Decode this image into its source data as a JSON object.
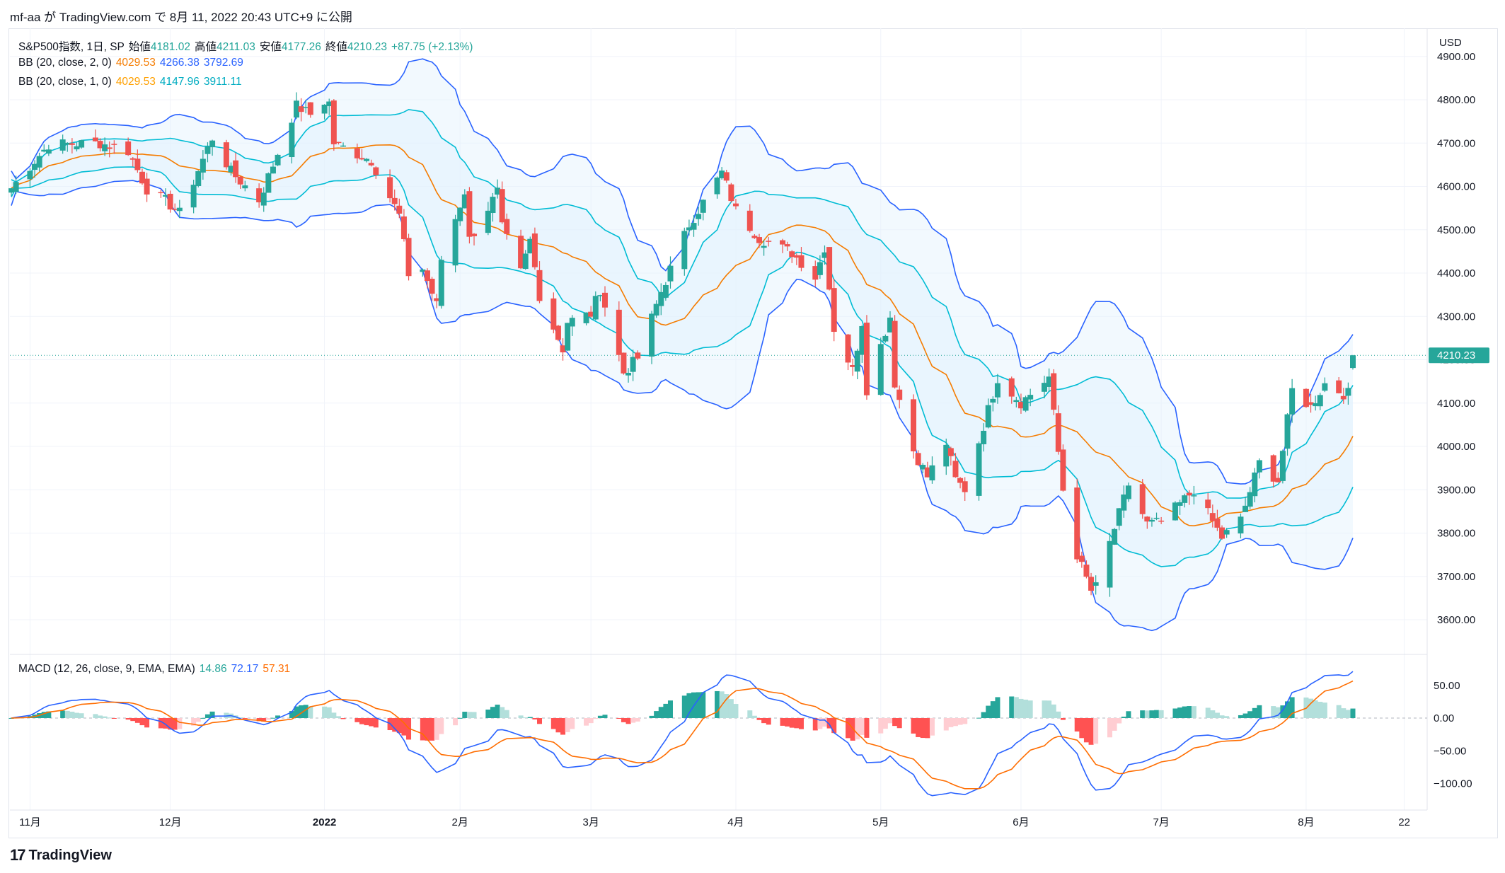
{
  "header": {
    "text": "mf-aa が TradingView.com で 8月 11, 2022 20:43 UTC+9 に公開"
  },
  "legend": {
    "symbol": "S&P500指数, 1日, SP",
    "open_label": "始値",
    "open": "4181.02",
    "high_label": "高値",
    "high": "4211.03",
    "low_label": "安値",
    "low": "4177.26",
    "close_label": "終値",
    "close": "4210.23",
    "change": "+87.75 (+2.13%)",
    "bb2_title": "BB (20, close, 2, 0)",
    "bb2_basis": "4029.53",
    "bb2_upper": "4266.38",
    "bb2_lower": "3792.69",
    "bb1_title": "BB (20, close, 1, 0)",
    "bb1_basis": "4029.53",
    "bb1_upper": "4147.96",
    "bb1_lower": "3911.11",
    "macd_title": "MACD (12, 26, close, 9, EMA, EMA)",
    "macd_hist": "14.86",
    "macd_line": "72.17",
    "macd_signal": "57.31"
  },
  "currency": "USD",
  "footer": {
    "brand": "TradingView",
    "logo_mark": "17"
  },
  "colors": {
    "up": "#26a69a",
    "down": "#ef5350",
    "bb_basis": "#f57c00",
    "bb2": "#2962ff",
    "bb1": "#00bcd4",
    "fill": "#e3f2fd",
    "macd": "#2962ff",
    "signal": "#ff6d00",
    "hist_up": "#26a69a",
    "hist_up_weak": "#b2dfdb",
    "hist_down": "#ff5252",
    "hist_down_weak": "#ffcdd2"
  },
  "chart_data": {
    "type": "candlestick",
    "y_axis": {
      "ticks": [
        "4900.00",
        "4800.00",
        "4700.00",
        "4600.00",
        "4500.00",
        "4400.00",
        "4300.00",
        "4200.00",
        "4100.00",
        "4000.00",
        "3900.00",
        "3800.00",
        "3700.00",
        "3600.00"
      ],
      "range": [
        3540,
        4930
      ]
    },
    "macd_axis": {
      "ticks": [
        "50.00",
        "0.00",
        "−50.00",
        "−100.00"
      ],
      "range": [
        -125,
        80
      ]
    },
    "x_axis": {
      "ticks": [
        "11月",
        "12月",
        "2022",
        "2月",
        "3月",
        "4月",
        "5月",
        "6月",
        "7月",
        "8月",
        "22"
      ]
    },
    "last_price": 4210.23,
    "close_path": [
      [
        "2021-10-28",
        4596
      ],
      [
        "2021-11-05",
        4697
      ],
      [
        "2021-11-16",
        4700
      ],
      [
        "2021-11-22",
        4682
      ],
      [
        "2021-11-26",
        4594
      ],
      [
        "2021-11-30",
        4567
      ],
      [
        "2021-12-03",
        4538
      ],
      [
        "2021-12-10",
        4712
      ],
      [
        "2021-12-14",
        4634
      ],
      [
        "2021-12-20",
        4568
      ],
      [
        "2021-12-28",
        4786
      ],
      [
        "2021-12-31",
        4766
      ],
      [
        "2022-01-03",
        4796
      ],
      [
        "2022-01-04",
        4793
      ],
      [
        "2022-01-05",
        4700
      ],
      [
        "2022-01-13",
        4660
      ],
      [
        "2022-01-19",
        4533
      ],
      [
        "2022-01-21",
        4398
      ],
      [
        "2022-01-24",
        4410
      ],
      [
        "2022-01-27",
        4326
      ],
      [
        "2022-01-28",
        4432
      ],
      [
        "2022-02-02",
        4589
      ],
      [
        "2022-02-03",
        4477
      ],
      [
        "2022-02-09",
        4587
      ],
      [
        "2022-02-10",
        4504
      ],
      [
        "2022-02-14",
        4401
      ],
      [
        "2022-02-16",
        4475
      ],
      [
        "2022-02-18",
        4349
      ],
      [
        "2022-02-23",
        4225
      ],
      [
        "2022-02-24",
        4288
      ],
      [
        "2022-03-01",
        4306
      ],
      [
        "2022-03-03",
        4363
      ],
      [
        "2022-03-08",
        4170
      ],
      [
        "2022-03-11",
        4204
      ],
      [
        "2022-03-16",
        4357
      ],
      [
        "2022-03-22",
        4512
      ],
      [
        "2022-03-29",
        4632
      ],
      [
        "2022-04-01",
        4545
      ],
      [
        "2022-04-06",
        4481
      ],
      [
        "2022-04-13",
        4447
      ],
      [
        "2022-04-18",
        4391
      ],
      [
        "2022-04-20",
        4460
      ],
      [
        "2022-04-22",
        4272
      ],
      [
        "2022-04-26",
        4175
      ],
      [
        "2022-04-28",
        4287
      ],
      [
        "2022-04-29",
        4132
      ],
      [
        "2022-05-04",
        4300
      ],
      [
        "2022-05-05",
        4147
      ],
      [
        "2022-05-09",
        3991
      ],
      [
        "2022-05-12",
        3930
      ],
      [
        "2022-05-16",
        4008
      ],
      [
        "2022-05-18",
        3923
      ],
      [
        "2022-05-20",
        3901
      ],
      [
        "2022-05-27",
        4158
      ],
      [
        "2022-06-01",
        4101
      ],
      [
        "2022-06-07",
        4160
      ],
      [
        "2022-06-10",
        3900
      ],
      [
        "2022-06-13",
        3750
      ],
      [
        "2022-06-16",
        3667
      ],
      [
        "2022-06-17",
        3675
      ],
      [
        "2022-06-24",
        3912
      ],
      [
        "2022-06-28",
        3821
      ],
      [
        "2022-07-01",
        3825
      ],
      [
        "2022-07-08",
        3899
      ],
      [
        "2022-07-14",
        3790
      ],
      [
        "2022-07-18",
        3830
      ],
      [
        "2022-07-22",
        3962
      ],
      [
        "2022-07-26",
        3921
      ],
      [
        "2022-07-29",
        4130
      ],
      [
        "2022-08-02",
        4091
      ],
      [
        "2022-08-05",
        4145
      ],
      [
        "2022-08-09",
        4122
      ],
      [
        "2022-08-10",
        4122
      ],
      [
        "2022-08-11",
        4210
      ]
    ]
  }
}
